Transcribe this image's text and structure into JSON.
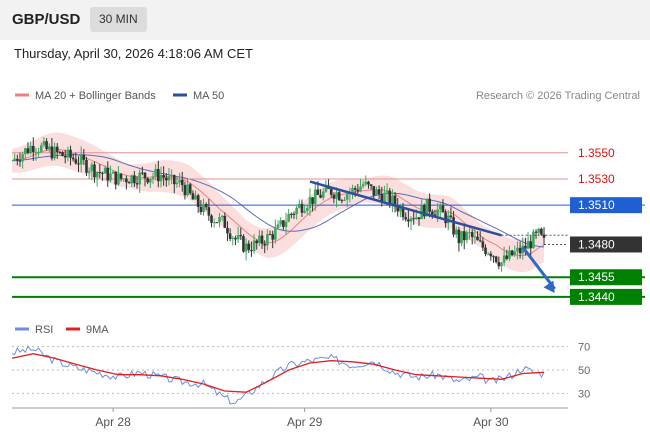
{
  "header": {
    "pair": "GBP/USD",
    "timeframe": "30 MIN"
  },
  "datetime": "Thursday, April 30, 2026 4:18:06 AM CET",
  "legend": {
    "ma_bb": "MA 20 + Bollinger Bands",
    "ma50": "MA 50",
    "copyright": "Research © 2026 Trading Central"
  },
  "rsi_legend": {
    "rsi": "RSI",
    "ma9": "9MA"
  },
  "colors": {
    "support": "#008000",
    "resistance": "#e89090",
    "pivot": "#1f5fd1",
    "trend": "#2c4f9e",
    "bb_fill": "#fad3d3",
    "ma20": "#f08080",
    "ma50": "#5a6fb5",
    "rsi": "#6a8ee0",
    "ma9": "#e02020",
    "price_label": "#333333"
  },
  "chart_data": {
    "type": "candlestick",
    "instrument": "GBP/USD",
    "interval": "30 MIN",
    "ylim": [
      1.343,
      1.3575
    ],
    "x_ticks": [
      "Apr 28",
      "Apr 29",
      "Apr 30"
    ],
    "levels": [
      {
        "value": 1.355,
        "label": "1.3550",
        "kind": "resistance"
      },
      {
        "value": 1.353,
        "label": "1.3530",
        "kind": "resistance"
      },
      {
        "value": 1.351,
        "label": "1.3510",
        "kind": "pivot"
      },
      {
        "value": 1.348,
        "label": "1.3480",
        "kind": "last"
      },
      {
        "value": 1.3455,
        "label": "1.3455",
        "kind": "support"
      },
      {
        "value": 1.344,
        "label": "1.3440",
        "kind": "support"
      }
    ],
    "close_path": [
      [
        0,
        1.3544
      ],
      [
        4,
        1.3556
      ],
      [
        8,
        1.355
      ],
      [
        12,
        1.3545
      ],
      [
        16,
        1.3536
      ],
      [
        20,
        1.353
      ],
      [
        24,
        1.3532
      ],
      [
        28,
        1.3533
      ],
      [
        30,
        1.3527
      ],
      [
        32,
        1.3526
      ],
      [
        34,
        1.3514
      ],
      [
        36,
        1.3506
      ],
      [
        38,
        1.35
      ],
      [
        40,
        1.3496
      ],
      [
        42,
        1.3484
      ],
      [
        44,
        1.3478
      ],
      [
        46,
        1.348
      ],
      [
        48,
        1.3485
      ],
      [
        50,
        1.3491
      ],
      [
        52,
        1.3502
      ],
      [
        54,
        1.3509
      ],
      [
        56,
        1.3514
      ],
      [
        58,
        1.3518
      ],
      [
        60,
        1.3521
      ],
      [
        62,
        1.3518
      ],
      [
        64,
        1.3521
      ],
      [
        66,
        1.3526
      ],
      [
        68,
        1.352
      ],
      [
        70,
        1.3517
      ],
      [
        72,
        1.3511
      ],
      [
        74,
        1.3504
      ],
      [
        76,
        1.3502
      ],
      [
        78,
        1.3509
      ],
      [
        80,
        1.3506
      ],
      [
        82,
        1.3499
      ],
      [
        84,
        1.3484
      ],
      [
        86,
        1.3487
      ],
      [
        88,
        1.3479
      ],
      [
        90,
        1.3475
      ],
      [
        92,
        1.3466
      ],
      [
        94,
        1.3472
      ],
      [
        96,
        1.3476
      ],
      [
        98,
        1.3484
      ],
      [
        99,
        1.3487
      ],
      [
        100,
        1.3481
      ]
    ],
    "trendline": {
      "from": [
        56,
        1.3528
      ],
      "to": [
        92,
        1.3487
      ]
    },
    "forecast_arrow": {
      "from": [
        96,
        1.3478
      ],
      "to": [
        102,
        1.3443
      ]
    },
    "rsi": {
      "ylim": [
        20,
        80
      ],
      "ticks": [
        70,
        50,
        30
      ],
      "path": [
        [
          0,
          65
        ],
        [
          4,
          68
        ],
        [
          8,
          58
        ],
        [
          12,
          52
        ],
        [
          16,
          48
        ],
        [
          20,
          44
        ],
        [
          24,
          48
        ],
        [
          28,
          44
        ],
        [
          32,
          40
        ],
        [
          36,
          38
        ],
        [
          40,
          26
        ],
        [
          42,
          22
        ],
        [
          44,
          28
        ],
        [
          48,
          42
        ],
        [
          52,
          54
        ],
        [
          56,
          58
        ],
        [
          60,
          60
        ],
        [
          64,
          54
        ],
        [
          68,
          58
        ],
        [
          72,
          48
        ],
        [
          76,
          44
        ],
        [
          80,
          46
        ],
        [
          84,
          40
        ],
        [
          88,
          44
        ],
        [
          90,
          40
        ],
        [
          92,
          42
        ],
        [
          94,
          46
        ],
        [
          96,
          52
        ],
        [
          98,
          48
        ],
        [
          100,
          47
        ]
      ],
      "ma9_path": [
        [
          0,
          60
        ],
        [
          4,
          64
        ],
        [
          8,
          60
        ],
        [
          12,
          55
        ],
        [
          16,
          50
        ],
        [
          20,
          46
        ],
        [
          24,
          46
        ],
        [
          28,
          45
        ],
        [
          32,
          42
        ],
        [
          36,
          38
        ],
        [
          40,
          32
        ],
        [
          44,
          31
        ],
        [
          48,
          40
        ],
        [
          52,
          50
        ],
        [
          56,
          56
        ],
        [
          60,
          58
        ],
        [
          64,
          57
        ],
        [
          68,
          55
        ],
        [
          72,
          50
        ],
        [
          76,
          46
        ],
        [
          80,
          45
        ],
        [
          84,
          44
        ],
        [
          88,
          43
        ],
        [
          92,
          42
        ],
        [
          96,
          47
        ],
        [
          100,
          48
        ]
      ]
    }
  }
}
